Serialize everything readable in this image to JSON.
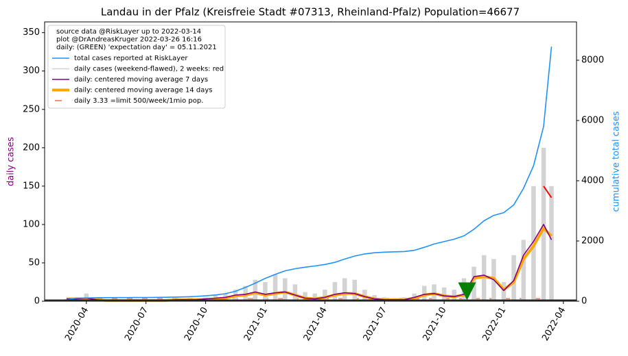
{
  "chart_data": {
    "type": "line",
    "title": "Landau in der Pfalz (Kreisfreie Stadt #07313, Rheinland-Pfalz) Population=46677",
    "ylabel": "daily cases",
    "ylabel_color": "purple",
    "y2label": "cumulative total cases",
    "y2label_color": "#1e90ff",
    "xlim": [
      2020.075,
      2022.305
    ],
    "xticks": [
      {
        "value": 2020.25,
        "label": "2020-04"
      },
      {
        "value": 2020.5,
        "label": "2020-07"
      },
      {
        "value": 2020.75,
        "label": "2020-10"
      },
      {
        "value": 2021.0,
        "label": "2021-01"
      },
      {
        "value": 2021.25,
        "label": "2021-04"
      },
      {
        "value": 2021.5,
        "label": "2021-07"
      },
      {
        "value": 2021.75,
        "label": "2021-10"
      },
      {
        "value": 2022.0,
        "label": "2022-01"
      },
      {
        "value": 2022.25,
        "label": "2022-04"
      }
    ],
    "ylim": [
      0,
      364
    ],
    "yticks": [
      0,
      50,
      100,
      150,
      200,
      250,
      300,
      350
    ],
    "y2lim": [
      0,
      9273
    ],
    "y2ticks": [
      0,
      2000,
      4000,
      6000,
      8000
    ],
    "legend_title": [
      "source data @RiskLayer up to 2022-03-14",
      "plot @DrAndreasKruger 2022-03-26 16:16",
      "daily: (GREEN) 'expectation day' = 05.11.2021"
    ],
    "legend_position": "upper left",
    "x": [
      2020.167,
      2020.208,
      2020.25,
      2020.292,
      2020.333,
      2020.375,
      2020.417,
      2020.458,
      2020.5,
      2020.542,
      2020.583,
      2020.625,
      2020.667,
      2020.708,
      2020.75,
      2020.792,
      2020.833,
      2020.875,
      2020.917,
      2020.958,
      2021.0,
      2021.042,
      2021.083,
      2021.125,
      2021.167,
      2021.208,
      2021.25,
      2021.292,
      2021.333,
      2021.375,
      2021.417,
      2021.458,
      2021.5,
      2021.542,
      2021.583,
      2021.625,
      2021.667,
      2021.708,
      2021.75,
      2021.792,
      2021.833,
      2021.875,
      2021.917,
      2021.958,
      2022.0,
      2022.042,
      2022.083,
      2022.125,
      2022.167,
      2022.2
    ],
    "series": [
      {
        "name": "total cases reported at RiskLayer",
        "type": "line",
        "axis": "y2",
        "color": "#1e90ff",
        "width": 1.6,
        "values": [
          50,
          100,
          110,
          115,
          118,
          120,
          120,
          122,
          125,
          128,
          132,
          138,
          145,
          160,
          180,
          210,
          250,
          330,
          460,
          600,
          760,
          890,
          1010,
          1080,
          1130,
          1170,
          1220,
          1290,
          1400,
          1500,
          1570,
          1610,
          1630,
          1640,
          1650,
          1690,
          1790,
          1900,
          1980,
          2060,
          2170,
          2390,
          2670,
          2850,
          2940,
          3200,
          3750,
          4500,
          5800,
          8450
        ]
      },
      {
        "name": "daily cases (weekend-flawed), 2 weeks: red",
        "type": "bar",
        "color": "#d3d3d3",
        "values": [
          3,
          5,
          10,
          3,
          1,
          1,
          1,
          2,
          1,
          2,
          2,
          3,
          3,
          4,
          5,
          8,
          10,
          15,
          20,
          28,
          25,
          35,
          30,
          22,
          12,
          10,
          15,
          25,
          30,
          28,
          15,
          8,
          5,
          4,
          5,
          10,
          20,
          22,
          18,
          15,
          30,
          45,
          60,
          55,
          25,
          60,
          80,
          150,
          200,
          150
        ]
      },
      {
        "name": "daily: centered moving average 7 days",
        "type": "line",
        "color": "purple",
        "width": 1.6,
        "values": [
          3,
          3,
          4,
          2,
          1,
          1,
          1,
          1,
          1,
          1,
          1,
          2,
          2,
          2,
          3,
          4,
          5,
          8,
          9,
          12,
          9,
          11,
          12,
          8,
          4,
          3,
          5,
          9,
          11,
          10,
          6,
          3,
          2,
          2,
          2,
          5,
          9,
          10,
          7,
          6,
          9,
          32,
          34,
          28,
          14,
          27,
          60,
          78,
          100,
          80
        ]
      },
      {
        "name": "daily: centered moving average 14 days",
        "type": "line",
        "color": "orange",
        "width": 4,
        "values": [
          3,
          3,
          3,
          2,
          1,
          1,
          1,
          1,
          1,
          1,
          1,
          2,
          2,
          2,
          2,
          3,
          4,
          7,
          8,
          11,
          8,
          10,
          12,
          8,
          4,
          3,
          5,
          8,
          10,
          10,
          6,
          3,
          2,
          2,
          2,
          4,
          8,
          10,
          7,
          6,
          8,
          30,
          32,
          30,
          15,
          25,
          55,
          72,
          95,
          85
        ]
      },
      {
        "name": "daily 3.33 =limit 500/week/1mio pop.",
        "type": "hline",
        "color": "#e9967a",
        "value": 3.33
      }
    ],
    "red_segment": {
      "color": "red",
      "x": [
        2022.167,
        2022.2
      ],
      "values": [
        150,
        135
      ]
    },
    "expectation_day": {
      "x": 2021.846,
      "y": 12,
      "color": "green"
    }
  }
}
